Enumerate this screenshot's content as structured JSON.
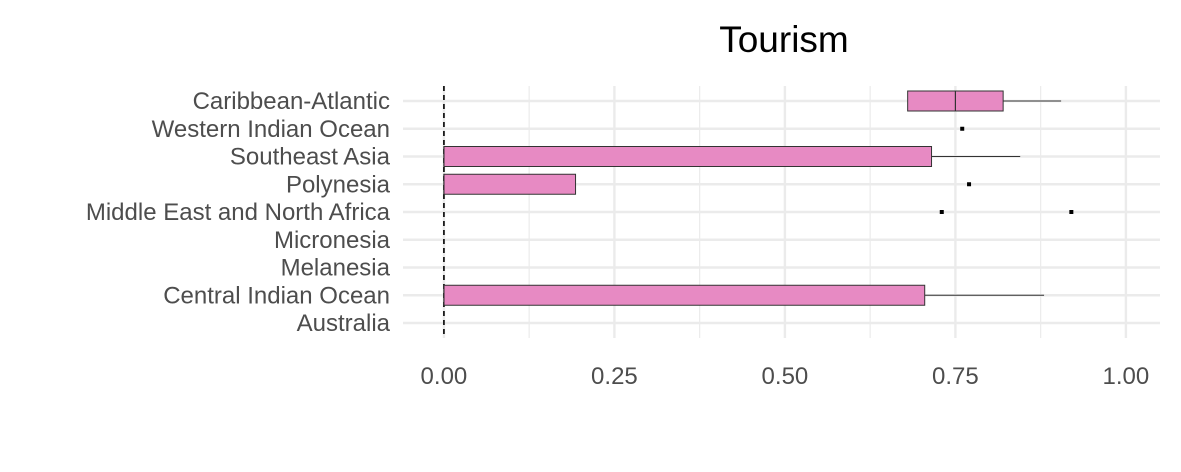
{
  "chart_data": {
    "type": "boxplot",
    "orientation": "horizontal",
    "title": "Tourism",
    "xlabel": "",
    "ylabel": "",
    "xlim": [
      -0.06,
      1.05
    ],
    "xticks": [
      0.0,
      0.25,
      0.5,
      0.75,
      1.0
    ],
    "xtick_labels": [
      "0.00",
      "0.25",
      "0.50",
      "0.75",
      "1.00"
    ],
    "grid": true,
    "reference_line": {
      "x": 0,
      "style": "dashed",
      "color": "#000000"
    },
    "box_fill": "#e78ac3",
    "box_stroke": "#333333",
    "categories": [
      "Caribbean-Atlantic",
      "Western Indian Ocean",
      "Southeast Asia",
      "Polynesia",
      "Middle East and North Africa",
      "Micronesia",
      "Melanesia",
      "Central Indian Ocean",
      "Australia"
    ],
    "boxes": [
      {
        "category": "Caribbean-Atlantic",
        "whisker_low": 0.68,
        "q1": 0.68,
        "median": 0.75,
        "q3": 0.82,
        "whisker_high": 0.905,
        "outliers": []
      },
      {
        "category": "Western Indian Ocean",
        "whisker_low": 0.76,
        "q1": 0.76,
        "median": 0.76,
        "q3": 0.76,
        "whisker_high": 0.76,
        "outliers": []
      },
      {
        "category": "Southeast Asia",
        "whisker_low": 0.0,
        "q1": 0.0,
        "median": 0.0,
        "q3": 0.715,
        "whisker_high": 0.845,
        "outliers": []
      },
      {
        "category": "Polynesia",
        "whisker_low": 0.0,
        "q1": 0.0,
        "median": 0.0,
        "q3": 0.193,
        "whisker_high": 0.193,
        "outliers": [
          0.77
        ]
      },
      {
        "category": "Middle East and North Africa",
        "whisker_low": 0.0,
        "q1": 0.0,
        "median": 0.0,
        "q3": 0.0,
        "whisker_high": 0.0,
        "outliers": [
          0.73,
          0.92
        ]
      },
      {
        "category": "Micronesia",
        "whisker_low": 0.0,
        "q1": 0.0,
        "median": 0.0,
        "q3": 0.0,
        "whisker_high": 0.0,
        "outliers": []
      },
      {
        "category": "Melanesia",
        "whisker_low": 0.0,
        "q1": 0.0,
        "median": 0.0,
        "q3": 0.0,
        "whisker_high": 0.0,
        "outliers": []
      },
      {
        "category": "Central Indian Ocean",
        "whisker_low": 0.0,
        "q1": 0.0,
        "median": 0.0,
        "q3": 0.705,
        "whisker_high": 0.88,
        "outliers": []
      },
      {
        "category": "Australia",
        "whisker_low": 0.0,
        "q1": 0.0,
        "median": 0.0,
        "q3": 0.0,
        "whisker_high": 0.0,
        "outliers": []
      }
    ]
  }
}
